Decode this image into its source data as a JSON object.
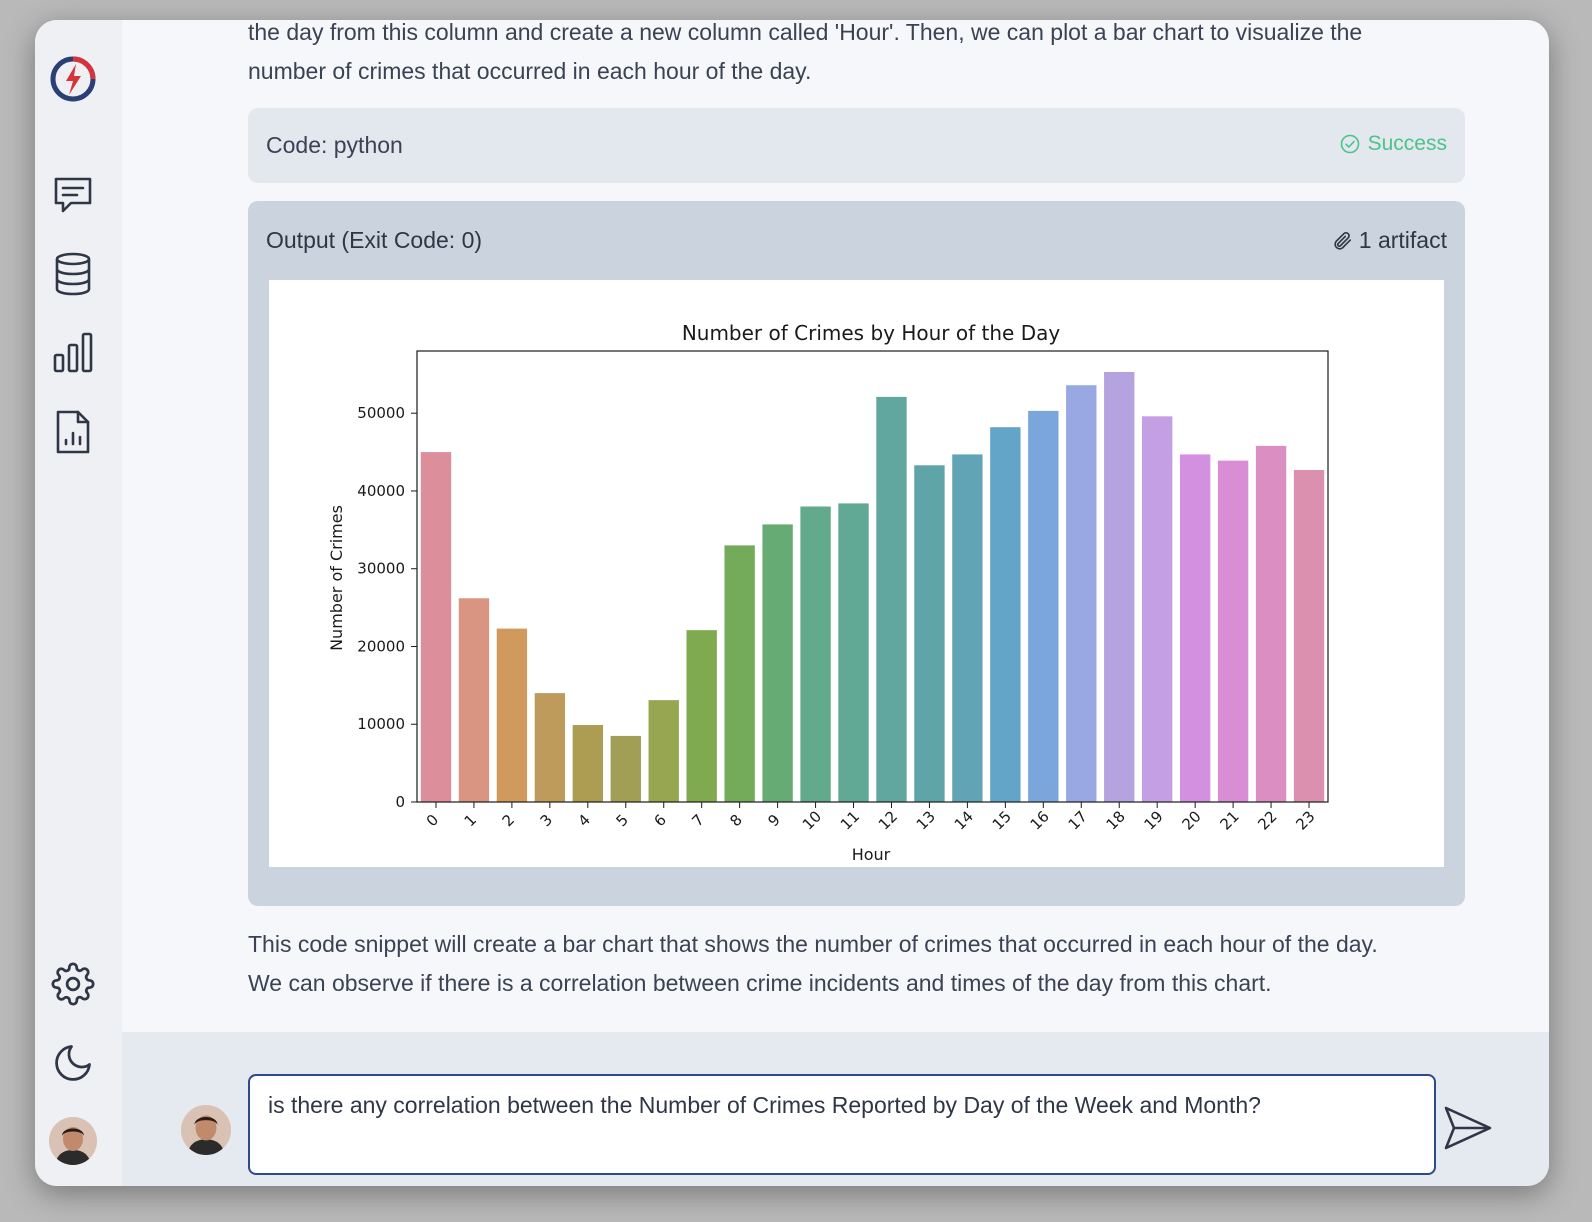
{
  "sidebar": {
    "items": [
      {
        "icon": "logo-icon"
      },
      {
        "icon": "chat-icon"
      },
      {
        "icon": "database-icon"
      },
      {
        "icon": "bar-chart-icon"
      },
      {
        "icon": "report-icon"
      },
      {
        "icon": "gear-icon"
      },
      {
        "icon": "moon-icon"
      },
      {
        "icon": "user-avatar"
      }
    ]
  },
  "message": {
    "intro_line1": "the day from this column and create a new column called 'Hour'. Then, we can plot a bar chart to visualize the",
    "intro_line2": "number of crimes that occurred in each hour of the day.",
    "code_label": "Code: python",
    "code_status": "Success",
    "output_label": "Output (Exit Code: 0)",
    "artifact_label": "1 artifact",
    "outro_line1": "This code snippet will create a bar chart that shows the number of crimes that occurred in each hour of the day.",
    "outro_line2": "We can observe if there is a correlation between crime incidents and times of the day from this chart."
  },
  "composer": {
    "value": "is there any correlation between the Number of Crimes Reported by Day of the Week and Month?"
  },
  "colors": {
    "success": "#4cc38a",
    "input_border": "#2f4a8a"
  },
  "chart_data": {
    "type": "bar",
    "title": "Number of Crimes by Hour of the Day",
    "xlabel": "Hour",
    "ylabel": "Number of Crimes",
    "ylim": [
      0,
      58000
    ],
    "yticks": [
      0,
      10000,
      20000,
      30000,
      40000,
      50000
    ],
    "categories": [
      "0",
      "1",
      "2",
      "3",
      "4",
      "5",
      "6",
      "7",
      "8",
      "9",
      "10",
      "11",
      "12",
      "13",
      "14",
      "15",
      "16",
      "17",
      "18",
      "19",
      "20",
      "21",
      "22",
      "23"
    ],
    "values": [
      45000,
      26200,
      22300,
      14000,
      9900,
      8500,
      13100,
      22100,
      33000,
      35700,
      38000,
      38400,
      52100,
      43300,
      44700,
      48200,
      50300,
      53600,
      55300,
      49600,
      44700,
      43900,
      45800,
      42700
    ],
    "colors": [
      "#dc8e9a",
      "#da9582",
      "#d19a5d",
      "#bf9b5b",
      "#ad9d52",
      "#a19f55",
      "#96a651",
      "#7faa50",
      "#73ab5b",
      "#66ab73",
      "#63a98b",
      "#61a895",
      "#61a69f",
      "#5fa4a6",
      "#61a4b5",
      "#63a4c9",
      "#7aa6db",
      "#99a7e3",
      "#b5a3e0",
      "#c59fe3",
      "#d38fe0",
      "#d88dd4",
      "#da8ec1",
      "#dc90b0"
    ],
    "grid": false
  }
}
